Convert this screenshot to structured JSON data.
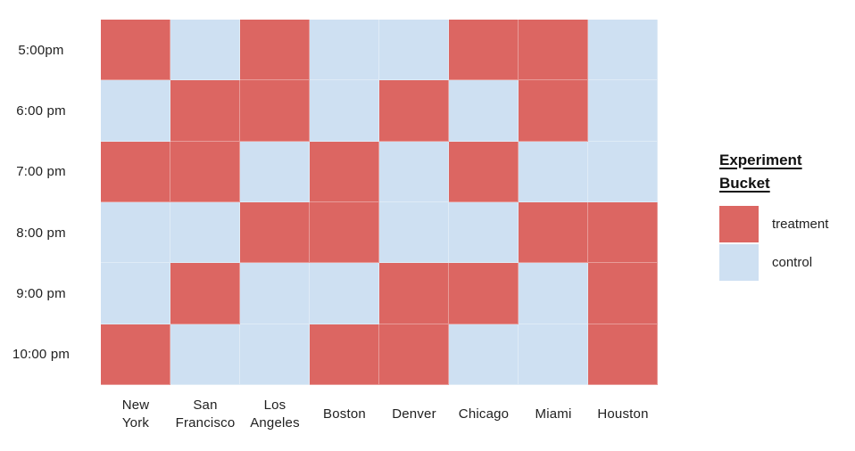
{
  "chart_data": {
    "type": "heatmap",
    "rows": [
      "5:00pm",
      "6:00 pm",
      "7:00 pm",
      "8:00 pm",
      "9:00 pm",
      "10:00 pm"
    ],
    "columns": [
      "New\nYork",
      "San\nFrancisco",
      "Los\nAngeles",
      "Boston",
      "Denver",
      "Chicago",
      "Miami",
      "Houston"
    ],
    "values": [
      [
        "treatment",
        "control",
        "treatment",
        "control",
        "control",
        "treatment",
        "treatment",
        "control"
      ],
      [
        "control",
        "treatment",
        "treatment",
        "control",
        "treatment",
        "control",
        "treatment",
        "control"
      ],
      [
        "treatment",
        "treatment",
        "control",
        "treatment",
        "control",
        "treatment",
        "control",
        "control"
      ],
      [
        "control",
        "control",
        "treatment",
        "treatment",
        "control",
        "control",
        "treatment",
        "treatment"
      ],
      [
        "control",
        "treatment",
        "control",
        "control",
        "treatment",
        "treatment",
        "control",
        "treatment"
      ],
      [
        "treatment",
        "control",
        "control",
        "treatment",
        "treatment",
        "control",
        "control",
        "treatment"
      ]
    ],
    "title": "",
    "xlabel": "",
    "ylabel": "",
    "legend_position": "right",
    "grid": "off"
  },
  "legend": {
    "title": "Experiment\nBucket",
    "items": [
      {
        "label": "treatment",
        "color": "#DC6662"
      },
      {
        "label": "control",
        "color": "#CEE0F2"
      }
    ]
  },
  "colors": {
    "treatment": "#DC6662",
    "control": "#CEE0F2",
    "text": "#212121",
    "background": "#FFFFFF"
  }
}
